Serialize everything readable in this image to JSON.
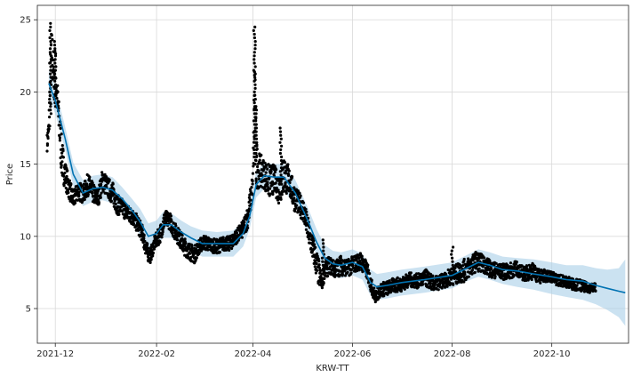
{
  "chart_data": {
    "type": "line",
    "xlabel": "KRW-TT",
    "ylabel": "Price",
    "ylim": [
      2.6,
      26.0
    ],
    "xlim": [
      "2021-11-20",
      "2022-11-17"
    ],
    "grid": true,
    "x_ticks": [
      "2021-12-01",
      "2022-02-01",
      "2022-04-01",
      "2022-06-01",
      "2022-08-01",
      "2022-10-01"
    ],
    "x_tick_labels": [
      "2021-12",
      "2022-02",
      "2022-04",
      "2022-06",
      "2022-08",
      "2022-10"
    ],
    "y_ticks": [
      5,
      10,
      15,
      20,
      25
    ],
    "y_tick_labels": [
      "5",
      "10",
      "15",
      "20",
      "25"
    ],
    "colors": {
      "observed": "#000000",
      "forecast": "#0072b2",
      "interval": "#a8cfe8",
      "grid": "#d9d9d9",
      "axis": "#262626"
    },
    "series": [
      {
        "role": "forecast",
        "x": [
          "2021-11-27",
          "2021-12-01",
          "2021-12-07",
          "2021-12-12",
          "2021-12-18",
          "2021-12-24",
          "2021-12-30",
          "2022-01-05",
          "2022-01-11",
          "2022-01-17",
          "2022-01-22",
          "2022-01-27",
          "2022-02-01",
          "2022-02-05",
          "2022-02-10",
          "2022-02-16",
          "2022-02-22",
          "2022-03-01",
          "2022-03-10",
          "2022-03-20",
          "2022-03-26",
          "2022-03-30",
          "2022-04-03",
          "2022-04-08",
          "2022-04-14",
          "2022-04-20",
          "2022-04-27",
          "2022-05-05",
          "2022-05-10",
          "2022-05-15",
          "2022-05-20",
          "2022-05-25",
          "2022-06-01",
          "2022-06-07",
          "2022-06-12",
          "2022-06-16",
          "2022-06-22",
          "2022-07-01",
          "2022-07-15",
          "2022-08-01",
          "2022-08-10",
          "2022-08-17",
          "2022-08-24",
          "2022-09-01",
          "2022-09-10",
          "2022-09-20",
          "2022-10-01",
          "2022-10-10",
          "2022-10-20",
          "2022-10-28",
          "2022-11-04",
          "2022-11-11",
          "2022-11-15"
        ],
        "y": [
          20.6,
          19.4,
          16.8,
          14.3,
          13.0,
          13.3,
          13.4,
          13.2,
          12.6,
          11.8,
          11.0,
          10.0,
          10.2,
          10.8,
          10.8,
          10.3,
          9.9,
          9.5,
          9.5,
          9.5,
          10.2,
          11.4,
          13.6,
          14.2,
          14.1,
          14.1,
          13.0,
          11.0,
          9.6,
          8.5,
          8.1,
          8.0,
          8.2,
          7.9,
          6.8,
          6.5,
          6.6,
          6.8,
          7.0,
          7.3,
          7.8,
          8.2,
          8.0,
          7.7,
          7.6,
          7.4,
          7.2,
          7.0,
          6.9,
          6.6,
          6.4,
          6.2,
          6.1
        ]
      },
      {
        "role": "interval_upper",
        "y": [
          21.5,
          20.3,
          17.6,
          15.1,
          13.9,
          14.2,
          14.3,
          14.1,
          13.4,
          12.6,
          11.9,
          10.9,
          11.1,
          11.7,
          11.6,
          11.1,
          10.7,
          10.4,
          10.3,
          10.4,
          11.0,
          12.3,
          14.5,
          15.1,
          15.0,
          15.0,
          13.9,
          11.9,
          10.5,
          9.4,
          9.0,
          8.9,
          9.1,
          8.8,
          7.7,
          7.4,
          7.5,
          7.7,
          7.9,
          8.2,
          8.7,
          9.1,
          8.9,
          8.6,
          8.5,
          8.4,
          8.2,
          8.0,
          8.0,
          7.8,
          7.7,
          7.8,
          8.4
        ]
      },
      {
        "role": "interval_lower",
        "y": [
          19.7,
          18.5,
          16.0,
          13.5,
          12.1,
          12.4,
          12.5,
          12.3,
          11.7,
          10.9,
          10.1,
          9.1,
          9.3,
          9.9,
          9.9,
          9.4,
          9.0,
          8.6,
          8.6,
          8.6,
          9.3,
          10.5,
          12.7,
          13.3,
          13.2,
          13.2,
          12.1,
          10.1,
          8.7,
          7.6,
          7.2,
          7.1,
          7.3,
          7.0,
          5.9,
          5.6,
          5.7,
          5.9,
          6.1,
          6.4,
          6.9,
          7.2,
          7.0,
          6.7,
          6.5,
          6.3,
          6.0,
          5.8,
          5.6,
          5.3,
          4.9,
          4.4,
          3.8
        ]
      },
      {
        "role": "observed",
        "x": [
          "2021-11-26",
          "2021-11-27",
          "2021-11-28",
          "2021-11-29",
          "2021-11-30",
          "2021-12-01",
          "2021-12-02",
          "2021-12-03",
          "2021-12-05",
          "2021-12-07",
          "2021-12-09",
          "2021-12-12",
          "2021-12-15",
          "2021-12-18",
          "2021-12-21",
          "2021-12-24",
          "2021-12-27",
          "2021-12-30",
          "2022-01-02",
          "2022-01-05",
          "2022-01-08",
          "2022-01-11",
          "2022-01-14",
          "2022-01-17",
          "2022-01-20",
          "2022-01-23",
          "2022-01-26",
          "2022-01-28",
          "2022-01-31",
          "2022-02-03",
          "2022-02-06",
          "2022-02-09",
          "2022-02-12",
          "2022-02-15",
          "2022-02-18",
          "2022-02-21",
          "2022-02-24",
          "2022-02-27",
          "2022-03-02",
          "2022-03-06",
          "2022-03-10",
          "2022-03-14",
          "2022-03-18",
          "2022-03-22",
          "2022-03-26",
          "2022-03-29",
          "2022-04-01",
          "2022-04-02",
          "2022-04-03",
          "2022-04-05",
          "2022-04-08",
          "2022-04-11",
          "2022-04-14",
          "2022-04-17",
          "2022-04-20",
          "2022-04-23",
          "2022-04-26",
          "2022-04-29",
          "2022-05-02",
          "2022-05-05",
          "2022-05-08",
          "2022-05-11",
          "2022-05-13",
          "2022-05-15",
          "2022-05-18",
          "2022-05-21",
          "2022-05-25",
          "2022-05-29",
          "2022-06-02",
          "2022-06-06",
          "2022-06-10",
          "2022-06-13",
          "2022-06-15",
          "2022-06-18",
          "2022-06-22",
          "2022-06-26",
          "2022-07-01",
          "2022-07-06",
          "2022-07-11",
          "2022-07-16",
          "2022-07-21",
          "2022-07-26",
          "2022-07-31",
          "2022-08-04",
          "2022-08-08",
          "2022-08-12",
          "2022-08-16",
          "2022-08-20",
          "2022-08-25",
          "2022-08-30",
          "2022-09-04",
          "2022-09-09",
          "2022-09-14",
          "2022-09-19",
          "2022-09-24",
          "2022-09-29",
          "2022-10-04",
          "2022-10-09",
          "2022-10-14",
          "2022-10-19",
          "2022-10-24",
          "2022-10-28"
        ],
        "y": [
          16.5,
          17.4,
          20.5,
          22.8,
          21.0,
          21.5,
          20.0,
          18.3,
          15.4,
          14.3,
          13.5,
          12.5,
          13.2,
          12.9,
          13.6,
          13.0,
          12.6,
          13.9,
          13.4,
          13.0,
          12.2,
          12.0,
          11.6,
          11.4,
          10.9,
          10.3,
          9.0,
          8.6,
          9.6,
          10.1,
          11.2,
          11.1,
          10.4,
          9.9,
          9.3,
          9.0,
          8.7,
          9.3,
          9.6,
          9.4,
          9.3,
          9.5,
          9.5,
          10.0,
          10.5,
          11.4,
          13.6,
          20.0,
          15.0,
          14.6,
          14.3,
          13.8,
          14.0,
          13.2,
          14.3,
          13.9,
          12.8,
          12.3,
          11.8,
          10.3,
          9.1,
          7.6,
          6.8,
          7.7,
          8.0,
          7.7,
          8.0,
          7.8,
          8.1,
          8.3,
          7.6,
          6.4,
          5.8,
          6.3,
          6.4,
          6.6,
          6.7,
          7.0,
          6.9,
          7.1,
          6.7,
          6.9,
          7.2,
          7.4,
          7.6,
          7.9,
          8.3,
          8.1,
          7.7,
          7.6,
          7.5,
          7.8,
          7.4,
          7.6,
          7.2,
          7.3,
          7.0,
          6.9,
          6.7,
          6.6,
          6.4,
          6.5
        ],
        "spread": [
          0.6,
          0.8,
          2.5,
          1.8,
          1.6,
          1.8,
          1.3,
          1.5,
          1.4,
          1.0,
          0.8,
          0.6,
          0.7,
          0.6,
          0.8,
          0.7,
          0.6,
          0.8,
          0.7,
          0.8,
          0.7,
          0.6,
          0.6,
          0.6,
          0.6,
          0.6,
          0.6,
          0.5,
          0.5,
          0.6,
          0.6,
          0.6,
          0.6,
          0.6,
          0.6,
          0.6,
          0.6,
          0.5,
          0.5,
          0.5,
          0.5,
          0.5,
          0.5,
          0.5,
          0.6,
          0.8,
          1.0,
          4.7,
          1.8,
          1.2,
          1.0,
          1.2,
          1.0,
          1.0,
          1.4,
          1.0,
          1.0,
          0.8,
          0.8,
          0.9,
          1.0,
          1.0,
          0.6,
          0.7,
          0.6,
          0.6,
          0.7,
          0.6,
          0.6,
          0.6,
          0.6,
          0.5,
          0.4,
          0.5,
          0.5,
          0.5,
          0.5,
          0.5,
          0.5,
          0.6,
          0.5,
          0.5,
          0.6,
          0.7,
          0.8,
          0.7,
          0.7,
          0.6,
          0.6,
          0.5,
          0.6,
          0.5,
          0.5,
          0.6,
          0.5,
          0.4,
          0.4,
          0.4,
          0.4,
          0.4,
          0.3,
          0.3
        ]
      }
    ]
  }
}
